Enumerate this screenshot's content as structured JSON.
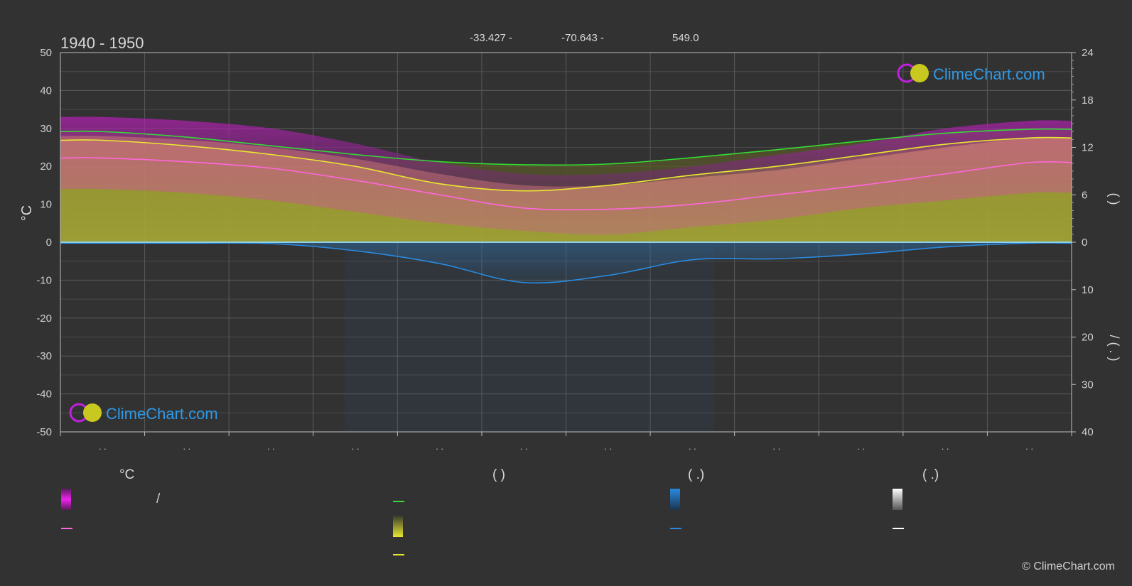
{
  "header": {
    "period": "1940 - 1950",
    "latitude": "-33.427 -",
    "longitude": "-70.643 -",
    "elevation": "549.0"
  },
  "brand": {
    "logo_text": "ClimeChart.com",
    "copyright": "© ClimeChart.com"
  },
  "legend": {
    "col1_header": "°C",
    "col1_slash": "/",
    "col2_header": "(          )",
    "col3_header": "(   .)",
    "col4_header": "(   .)"
  },
  "colors": {
    "background": "#323232",
    "daylight": "#33dd33",
    "sunshine": "#e8e830",
    "temp_mean": "#ff66dd",
    "temp_range": "#e24fa0",
    "temp_extreme": "#cc22cc",
    "precip": "#2a8ae0",
    "snow": "#ffffff"
  },
  "chart_data": {
    "type": "area",
    "month_labels": [
      ". .",
      ". .",
      ". .",
      ". .",
      ". .",
      ". .",
      ". .",
      ". .",
      ". .",
      ". .",
      ". .",
      ". ."
    ],
    "yaxis_left": {
      "label": "°C",
      "ticks": [
        50,
        40,
        30,
        20,
        10,
        0,
        -10,
        -20,
        -30,
        -40,
        -50
      ],
      "range": [
        -50,
        50
      ]
    },
    "yaxis_right_top": {
      "label": "(  )",
      "ticks": [
        24,
        18,
        12,
        6,
        0
      ],
      "range": [
        0,
        24
      ]
    },
    "yaxis_right_bottom": {
      "label": "/ (  .  )",
      "ticks": [
        0,
        10,
        20,
        30,
        40
      ],
      "range": [
        0,
        40
      ]
    },
    "x_mid_month": [
      0.5,
      1.5,
      2.5,
      3.5,
      4.5,
      5.5,
      6.5,
      7.5,
      8.5,
      9.5,
      10.5,
      11.5
    ],
    "series": [
      {
        "name": "daylight",
        "axis": "hours",
        "values": [
          14.0,
          13.3,
          12.2,
          11.1,
          10.2,
          9.8,
          9.9,
          10.7,
          11.7,
          12.8,
          13.8,
          14.3
        ]
      },
      {
        "name": "sunshine",
        "axis": "hours",
        "values": [
          12.9,
          12.2,
          11.1,
          9.6,
          7.4,
          6.5,
          7.2,
          8.5,
          9.6,
          11.0,
          12.4,
          13.2
        ]
      },
      {
        "name": "mean_temp",
        "axis": "celsius",
        "values": [
          22.2,
          21.2,
          19.5,
          16.3,
          12.5,
          9.0,
          8.7,
          10.0,
          12.5,
          15.0,
          18.0,
          21.0
        ]
      },
      {
        "name": "precipitation_mean",
        "axis": "mm_day",
        "values": [
          0.2,
          0.2,
          0.3,
          1.8,
          4.5,
          8.5,
          7.0,
          3.7,
          3.5,
          2.5,
          1.0,
          0.2
        ]
      },
      {
        "name": "avg_max_band_top",
        "axis": "celsius",
        "values": [
          28,
          27,
          25,
          22,
          18,
          15,
          15,
          17,
          19,
          22,
          25,
          27.5
        ]
      },
      {
        "name": "avg_min_band_bottom",
        "axis": "celsius",
        "values": [
          14,
          13,
          11,
          8,
          5,
          3,
          2,
          4,
          6,
          9,
          11,
          13
        ]
      },
      {
        "name": "extreme_max_top",
        "axis": "celsius",
        "values": [
          33,
          32,
          30,
          26,
          21,
          18,
          18,
          20,
          23,
          26,
          30,
          32
        ]
      }
    ]
  }
}
